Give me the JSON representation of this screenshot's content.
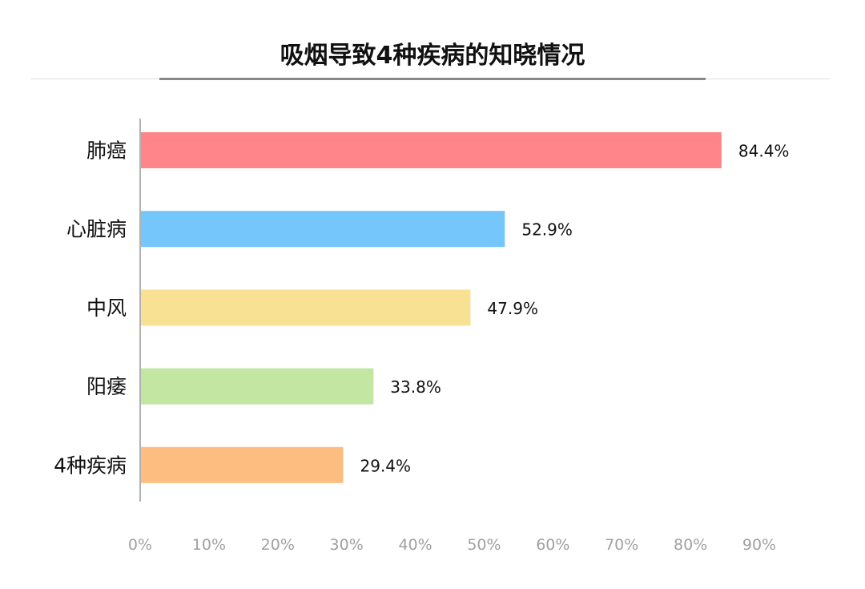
{
  "chart_data": {
    "type": "bar",
    "orientation": "horizontal",
    "title": "吸烟导致4种疾病的知晓情况",
    "categories": [
      "肺癌",
      "心脏病",
      "中风",
      "阳痿",
      "4种疾病"
    ],
    "values": [
      84.4,
      52.9,
      47.9,
      33.8,
      29.4
    ],
    "data_labels": [
      "84.4%",
      "52.9%",
      "47.9%",
      "33.8%",
      "29.4%"
    ],
    "colors": [
      "#FF858A",
      "#75C6FB",
      "#F9E193",
      "#C3E6A2",
      "#FDBD80"
    ],
    "xlim": [
      0,
      90
    ],
    "x_ticks": [
      "0%",
      "10%",
      "20%",
      "30%",
      "40%",
      "50%",
      "60%",
      "70%",
      "80%",
      "90%"
    ],
    "xlabel": "",
    "ylabel": "",
    "grid": false
  }
}
